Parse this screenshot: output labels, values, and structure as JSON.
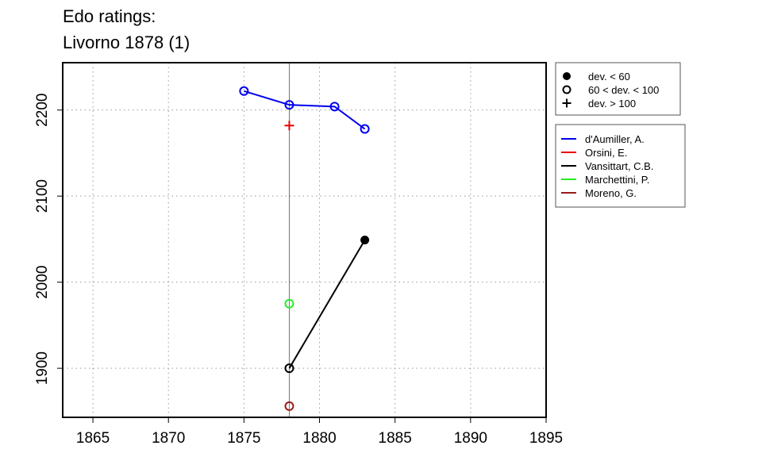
{
  "header": {
    "title_line1": "Edo ratings:",
    "title_line2": "Livorno 1878 (1)"
  },
  "chart_data": {
    "type": "line",
    "x": [
      1865,
      1870,
      1875,
      1880,
      1885,
      1890,
      1895
    ],
    "xlim": [
      1863,
      1895
    ],
    "ylim": [
      1843,
      2255
    ],
    "x_ticks": [
      1865,
      1870,
      1875,
      1880,
      1885,
      1890,
      1895
    ],
    "y_ticks": [
      1900,
      2000,
      2100,
      2200
    ],
    "grid": true,
    "event_year": 1878,
    "deviation_legend": {
      "placement": "top-right",
      "entries": [
        {
          "marker": "filled-circle",
          "label": "dev. < 60"
        },
        {
          "marker": "open-circle",
          "label": "60 < dev. < 100"
        },
        {
          "marker": "plus",
          "label": "dev. > 100"
        }
      ]
    },
    "series": [
      {
        "name": "d'Aumiller, A.",
        "color": "#0000ee",
        "points": [
          {
            "x": 1875,
            "y": 2222,
            "marker": "open-circle"
          },
          {
            "x": 1878,
            "y": 2206,
            "marker": "open-circle"
          },
          {
            "x": 1881,
            "y": 2204,
            "marker": "open-circle"
          },
          {
            "x": 1883,
            "y": 2178,
            "marker": "open-circle"
          }
        ]
      },
      {
        "name": "Orsini, E.",
        "color": "#ee0000",
        "points": [
          {
            "x": 1878,
            "y": 2182,
            "marker": "plus"
          }
        ]
      },
      {
        "name": "Vansittart, C.B.",
        "color": "#000000",
        "points": [
          {
            "x": 1878,
            "y": 1900,
            "marker": "open-circle"
          },
          {
            "x": 1883,
            "y": 2049,
            "marker": "filled-circle"
          }
        ]
      },
      {
        "name": "Marchettini, P.",
        "color": "#22ee22",
        "points": [
          {
            "x": 1878,
            "y": 1975,
            "marker": "open-circle"
          }
        ]
      },
      {
        "name": "Moreno, G.",
        "color": "#9b1a1a",
        "points": [
          {
            "x": 1878,
            "y": 1856,
            "marker": "open-circle"
          }
        ]
      }
    ]
  }
}
